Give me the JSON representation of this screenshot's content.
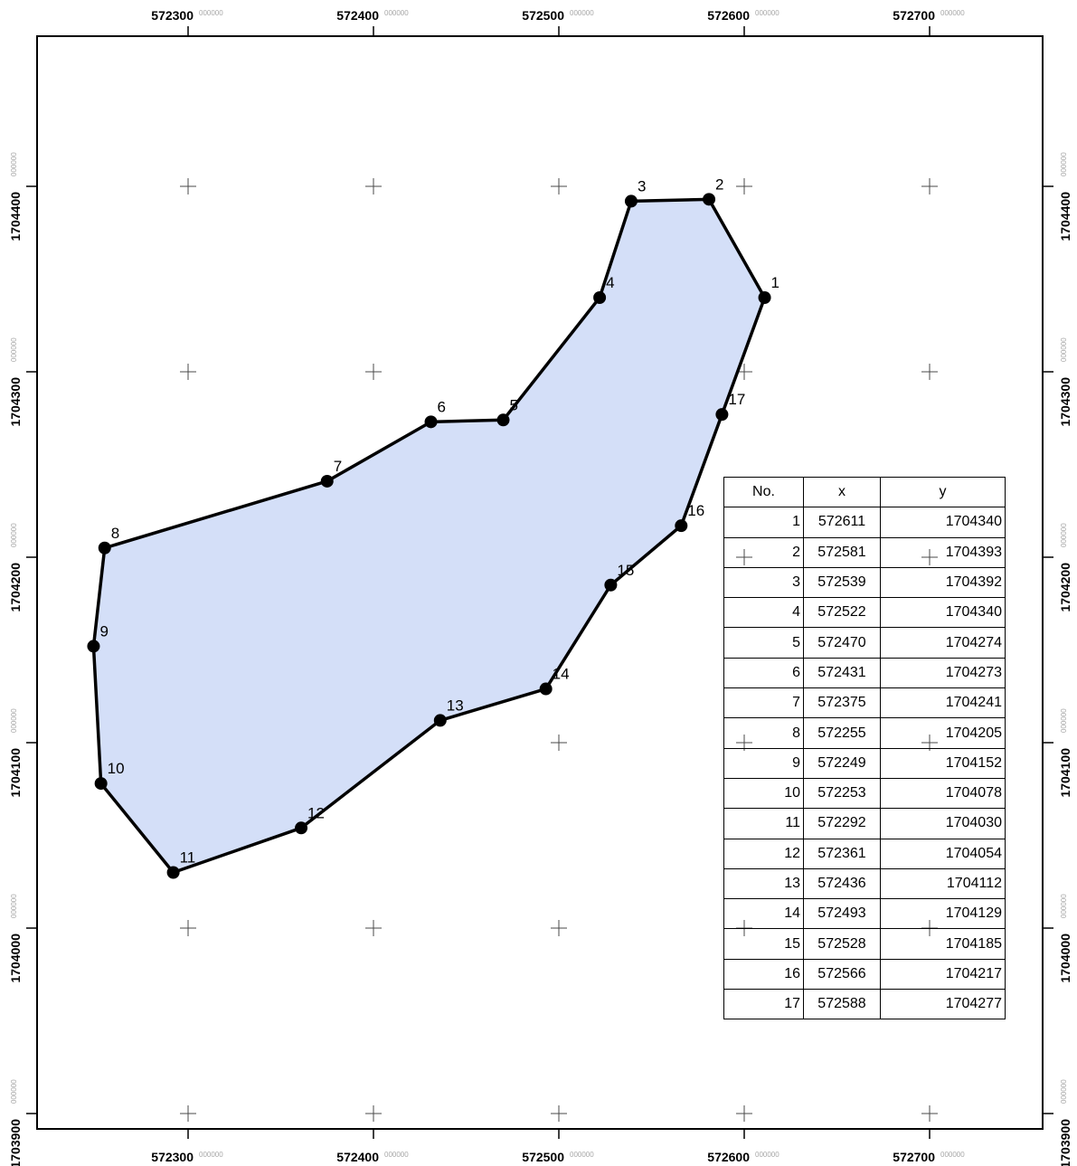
{
  "map": {
    "x_ticks": [
      "572300",
      "572400",
      "572500",
      "572600",
      "572700"
    ],
    "y_ticks": [
      "1704400",
      "1704300",
      "1704200",
      "1704100",
      "1704000",
      "1703900"
    ],
    "tick_suffix": "000000",
    "polygon_fill": "#d4dff8",
    "polygon_stroke": "#000000",
    "grid_marker": "cross"
  },
  "table": {
    "headers": [
      "No.",
      "x",
      "y"
    ],
    "rows": [
      {
        "no": "1",
        "x": "572611",
        "y": "1704340"
      },
      {
        "no": "2",
        "x": "572581",
        "y": "1704393"
      },
      {
        "no": "3",
        "x": "572539",
        "y": "1704392"
      },
      {
        "no": "4",
        "x": "572522",
        "y": "1704340"
      },
      {
        "no": "5",
        "x": "572470",
        "y": "1704274"
      },
      {
        "no": "6",
        "x": "572431",
        "y": "1704273"
      },
      {
        "no": "7",
        "x": "572375",
        "y": "1704241"
      },
      {
        "no": "8",
        "x": "572255",
        "y": "1704205"
      },
      {
        "no": "9",
        "x": "572249",
        "y": "1704152"
      },
      {
        "no": "10",
        "x": "572253",
        "y": "1704078"
      },
      {
        "no": "11",
        "x": "572292",
        "y": "1704030"
      },
      {
        "no": "12",
        "x": "572361",
        "y": "1704054"
      },
      {
        "no": "13",
        "x": "572436",
        "y": "1704112"
      },
      {
        "no": "14",
        "x": "572493",
        "y": "1704129"
      },
      {
        "no": "15",
        "x": "572528",
        "y": "1704185"
      },
      {
        "no": "16",
        "x": "572566",
        "y": "1704217"
      },
      {
        "no": "17",
        "x": "572588",
        "y": "1704277"
      }
    ]
  }
}
